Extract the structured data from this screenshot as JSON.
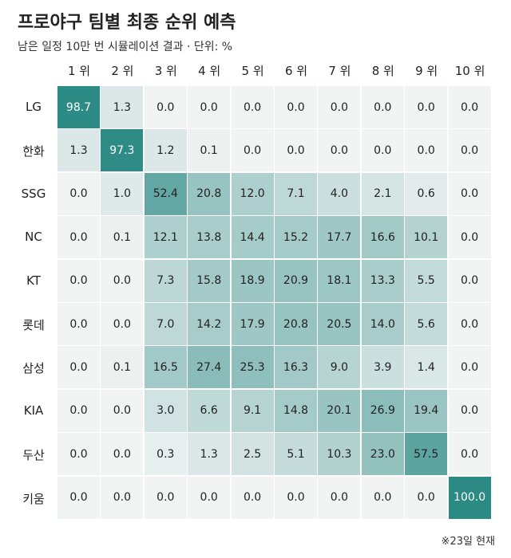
{
  "title": "프로야구 팀별 최종 순위 예측",
  "subtitle": "남은 일정 10만 번 시뮬레이션 결과 · 단위: %",
  "footnote": "※23일 현재",
  "chart_data": {
    "type": "heatmap",
    "title": "프로야구 팀별 최종 순위 예측",
    "subtitle": "남은 일정 10만 번 시뮬레이션 결과 · 단위: %",
    "columns": [
      "1 위",
      "2 위",
      "3 위",
      "4 위",
      "5 위",
      "6 위",
      "7 위",
      "8 위",
      "9 위",
      "10 위"
    ],
    "rows": [
      "LG",
      "한화",
      "SSG",
      "NC",
      "KT",
      "롯데",
      "삼성",
      "KIA",
      "두산",
      "키움"
    ],
    "values": [
      [
        98.7,
        1.3,
        0.0,
        0.0,
        0.0,
        0.0,
        0.0,
        0.0,
        0.0,
        0.0
      ],
      [
        1.3,
        97.3,
        1.2,
        0.1,
        0.0,
        0.0,
        0.0,
        0.0,
        0.0,
        0.0
      ],
      [
        0.0,
        1.0,
        52.4,
        20.8,
        12.0,
        7.1,
        4.0,
        2.1,
        0.6,
        0.0
      ],
      [
        0.0,
        0.1,
        12.1,
        13.8,
        14.4,
        15.2,
        17.7,
        16.6,
        10.1,
        0.0
      ],
      [
        0.0,
        0.0,
        7.3,
        15.8,
        18.9,
        20.9,
        18.1,
        13.3,
        5.5,
        0.0
      ],
      [
        0.0,
        0.0,
        7.0,
        14.2,
        17.9,
        20.8,
        20.5,
        14.0,
        5.6,
        0.0
      ],
      [
        0.0,
        0.1,
        16.5,
        27.4,
        25.3,
        16.3,
        9.0,
        3.9,
        1.4,
        0.0
      ],
      [
        0.0,
        0.0,
        3.0,
        6.6,
        9.1,
        14.8,
        20.1,
        26.9,
        19.4,
        0.0
      ],
      [
        0.0,
        0.0,
        0.3,
        1.3,
        2.5,
        5.1,
        10.3,
        23.0,
        57.5,
        0.0
      ],
      [
        0.0,
        0.0,
        0.0,
        0.0,
        0.0,
        0.0,
        0.0,
        0.0,
        0.0,
        100.0
      ]
    ],
    "value_range": [
      0,
      100
    ],
    "colors": {
      "low": "#f2f4f4",
      "high": "#2b8a84"
    }
  }
}
